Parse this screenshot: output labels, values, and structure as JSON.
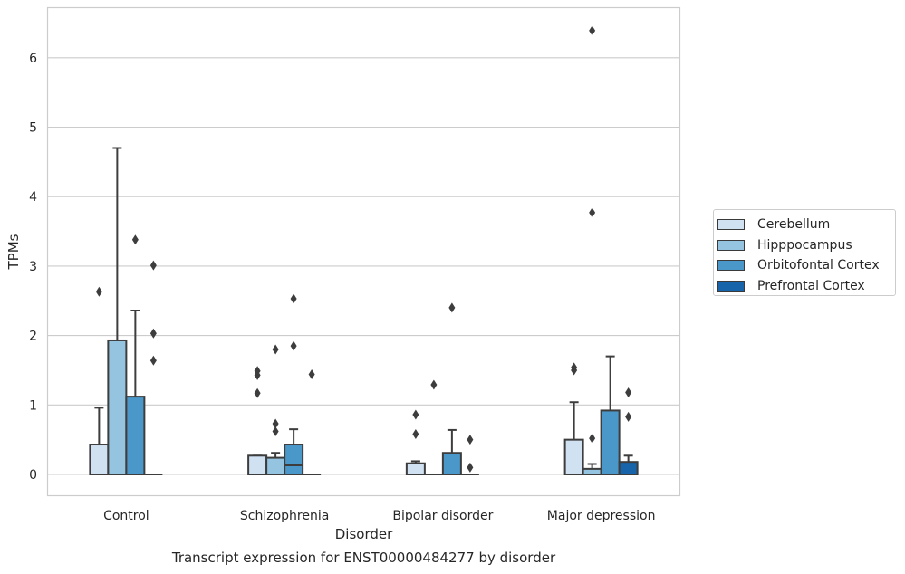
{
  "chart_data": {
    "type": "box",
    "title": "",
    "caption": "Transcript expression for ENST00000484277 by disorder",
    "xlabel": "Disorder",
    "ylabel": "TPMs",
    "ylim": [
      -0.3,
      6.75
    ],
    "yticks": [
      "0",
      "1",
      "2",
      "3",
      "4",
      "5",
      "6"
    ],
    "grid": "horizontal",
    "legend_position": "right",
    "categories": [
      "Control",
      "Schizophrenia",
      "Bipolar disorder",
      "Major depression"
    ],
    "series": [
      {
        "name": "Cerebellum",
        "color": "#d0e1f2",
        "boxes": [
          {
            "q1": 0,
            "median": 0,
            "q3": 0.43,
            "whisker_low": 0,
            "whisker_high": 0.96,
            "outliers": [
              2.63
            ]
          },
          {
            "q1": 0,
            "median": 0,
            "q3": 0.27,
            "whisker_low": 0,
            "whisker_high": 0.27,
            "outliers": [
              1.17,
              1.43,
              1.49
            ]
          },
          {
            "q1": 0,
            "median": 0,
            "q3": 0.16,
            "whisker_low": 0,
            "whisker_high": 0.19,
            "outliers": [
              0.58,
              0.86
            ]
          },
          {
            "q1": 0,
            "median": 0,
            "q3": 0.5,
            "whisker_low": 0,
            "whisker_high": 1.04,
            "outliers": [
              1.5,
              1.54
            ]
          }
        ]
      },
      {
        "name": "Hipppocampus",
        "color": "#94c4df",
        "boxes": [
          {
            "q1": 0,
            "median": 0,
            "q3": 1.93,
            "whisker_low": 0,
            "whisker_high": 4.7,
            "outliers": []
          },
          {
            "q1": 0,
            "median": 0,
            "q3": 0.24,
            "whisker_low": 0,
            "whisker_high": 0.31,
            "outliers": [
              0.62,
              0.73,
              1.8
            ]
          },
          {
            "q1": 0,
            "median": 0,
            "q3": 0,
            "whisker_low": 0,
            "whisker_high": 0,
            "outliers": [
              1.29
            ]
          },
          {
            "q1": 0,
            "median": 0,
            "q3": 0.08,
            "whisker_low": 0,
            "whisker_high": 0.15,
            "outliers": [
              0.52,
              3.77,
              6.39
            ]
          }
        ]
      },
      {
        "name": "Orbitofontal Cortex",
        "color": "#4a98c9",
        "boxes": [
          {
            "q1": 0,
            "median": 0,
            "q3": 1.12,
            "whisker_low": 0,
            "whisker_high": 2.36,
            "outliers": [
              3.38
            ]
          },
          {
            "q1": 0,
            "median": 0.13,
            "q3": 0.43,
            "whisker_low": 0,
            "whisker_high": 0.65,
            "outliers": [
              1.85,
              2.53
            ]
          },
          {
            "q1": 0,
            "median": 0,
            "q3": 0.31,
            "whisker_low": 0,
            "whisker_high": 0.64,
            "outliers": [
              2.4
            ]
          },
          {
            "q1": 0,
            "median": 0,
            "q3": 0.92,
            "whisker_low": 0,
            "whisker_high": 1.7,
            "outliers": []
          }
        ]
      },
      {
        "name": "Prefrontal Cortex",
        "color": "#1764ab",
        "boxes": [
          {
            "q1": 0,
            "median": 0,
            "q3": 0,
            "whisker_low": 0,
            "whisker_high": 0,
            "outliers": [
              1.64,
              2.03,
              3.01
            ]
          },
          {
            "q1": 0,
            "median": 0,
            "q3": 0,
            "whisker_low": 0,
            "whisker_high": 0,
            "outliers": [
              1.44
            ]
          },
          {
            "q1": 0,
            "median": 0,
            "q3": 0,
            "whisker_low": 0,
            "whisker_high": 0,
            "outliers": [
              0.1,
              0.5
            ]
          },
          {
            "q1": 0,
            "median": 0,
            "q3": 0.18,
            "whisker_low": 0,
            "whisker_high": 0.27,
            "outliers": [
              0.83,
              1.18
            ]
          }
        ]
      }
    ]
  }
}
